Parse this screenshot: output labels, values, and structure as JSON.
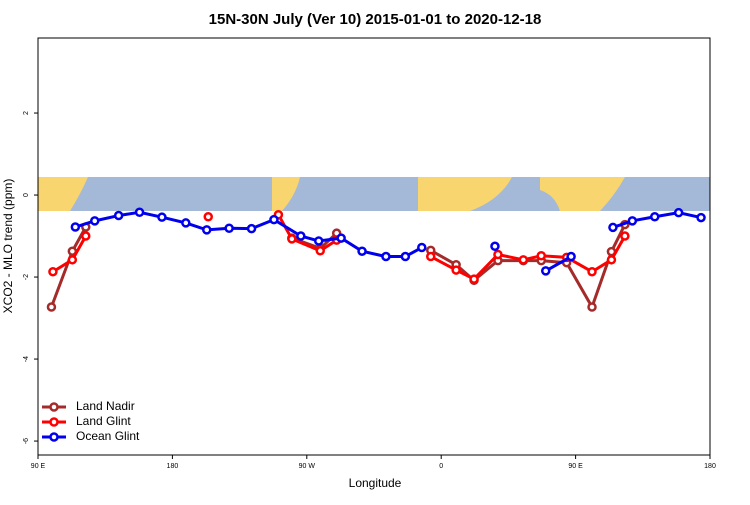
{
  "chart_data": {
    "type": "line",
    "title": "15N-30N July (Ver 10)   2015-01-01 to 2020-12-18",
    "x_label": "Longitude",
    "y_label": "XCO2 - MLO trend (ppm)",
    "xlim": [
      90,
      540
    ],
    "xticks": [
      {
        "value": 90,
        "label": "90 E"
      },
      {
        "value": 180,
        "label": "180"
      },
      {
        "value": 270,
        "label": "90 W"
      },
      {
        "value": 360,
        "label": "0"
      },
      {
        "value": 450,
        "label": "90 E"
      },
      {
        "value": 540,
        "label": "180"
      }
    ],
    "ylim": [
      -6.34,
      3.83
    ],
    "yticks": [
      -6,
      -4,
      -2,
      0,
      2
    ],
    "legend": "bottom-left",
    "series": [
      {
        "name": "Land Nadir",
        "color": "#a52a2a",
        "x": [
          99,
          113,
          122,
          null,
          260,
          279,
          290,
          null,
          353,
          370,
          382,
          398,
          415,
          427,
          444,
          461,
          474,
          483
        ],
        "values": [
          -2.73,
          -1.37,
          -0.78,
          null,
          -1.05,
          -1.3,
          -0.93,
          null,
          -1.35,
          -1.7,
          -2.08,
          -1.6,
          -1.6,
          -1.6,
          -1.65,
          -2.73,
          -1.38,
          -0.72
        ]
      },
      {
        "name": "Land Glint",
        "color": "#ff0000",
        "x": [
          100,
          113,
          122,
          null,
          204,
          null,
          251,
          260,
          279,
          290,
          null,
          353,
          370,
          382,
          398,
          415,
          427,
          444,
          461,
          474,
          483
        ],
        "values": [
          -1.87,
          -1.58,
          -1.0,
          null,
          -0.53,
          null,
          -0.48,
          -1.07,
          -1.36,
          -1.1,
          null,
          -1.5,
          -1.83,
          -2.05,
          -1.45,
          -1.58,
          -1.48,
          -1.52,
          -1.87,
          -1.58,
          -1.0
        ]
      },
      {
        "name": "Ocean Glint",
        "color": "#0000ee",
        "x": [
          115,
          128,
          144,
          158,
          173,
          189,
          203,
          218,
          233,
          248,
          266,
          278,
          293,
          307,
          323,
          336,
          347,
          null,
          396,
          null,
          430,
          447,
          null,
          475,
          488,
          503,
          519,
          534
        ],
        "values": [
          -0.78,
          -0.63,
          -0.5,
          -0.42,
          -0.54,
          -0.68,
          -0.85,
          -0.81,
          -0.82,
          -0.6,
          -1.0,
          -1.12,
          -1.05,
          -1.37,
          -1.5,
          -1.5,
          -1.28,
          null,
          -1.25,
          null,
          -1.85,
          -1.5,
          null,
          -0.79,
          -0.63,
          -0.53,
          -0.43,
          -0.55
        ]
      }
    ]
  }
}
